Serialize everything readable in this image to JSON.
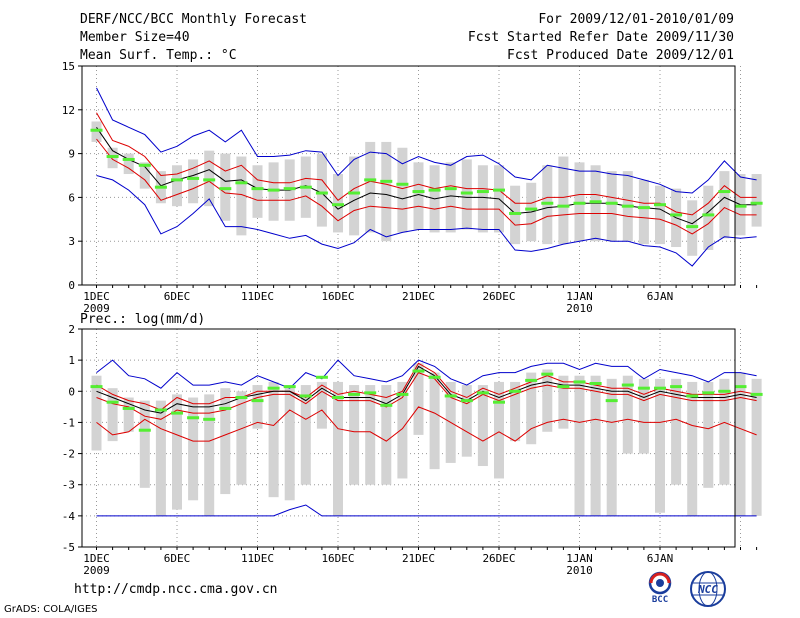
{
  "header": {
    "title": "DERF/NCC/BCC Monthly Forecast",
    "member_size": "Member Size=40",
    "variable": "Mean Surf. Temp.: °C",
    "period": "For 2009/12/01-2010/01/09",
    "fcst_started": "Fcst Started Refer Date 2009/11/30",
    "fcst_produced": "Fcst Produced Date 2009/12/01"
  },
  "footer": {
    "url": "http://cmdp.ncc.cma.gov.cn",
    "credit": "GrADS: COLA/IGES",
    "logo_bcc": "BCC",
    "logo_ncc": "NCC"
  },
  "colors": {
    "ensemble_mean": "#000000",
    "spread": "#dd0000",
    "extreme": "#0000cc",
    "bar": "#d3d3d3",
    "marker": "#55ee33"
  },
  "chart_data": [
    {
      "type": "line",
      "title": "Mean Surf. Temp.: °C",
      "ylim": [
        0,
        15
      ],
      "yticks": [
        "0",
        "3",
        "6",
        "9",
        "12",
        "15"
      ],
      "xtick_labels": [
        "1DEC",
        "6DEC",
        "11DEC",
        "16DEC",
        "21DEC",
        "26DEC",
        "1JAN",
        "6JAN"
      ],
      "xtick_years": [
        "2009",
        "",
        "",
        "",
        "",
        "",
        "2010",
        ""
      ],
      "series": [
        {
          "name": "max",
          "values": [
            13.5,
            11.3,
            10.8,
            10.3,
            9.1,
            9.5,
            10.2,
            10.6,
            9.8,
            10.6,
            8.8,
            8.8,
            8.9,
            9.2,
            9.1,
            7.5,
            8.6,
            9.1,
            9.0,
            8.3,
            8.8,
            8.4,
            8.2,
            8.8,
            8.9,
            8.3,
            7.4,
            7.2,
            8.2,
            8.0,
            7.8,
            7.8,
            7.6,
            7.5,
            7.2,
            6.9,
            6.4,
            6.3,
            7.2,
            8.5,
            7.4,
            7.2
          ]
        },
        {
          "name": "upper",
          "values": [
            11.8,
            9.9,
            9.5,
            8.8,
            7.5,
            7.6,
            8.0,
            8.5,
            7.8,
            8.2,
            7.2,
            7.0,
            7.0,
            7.3,
            7.2,
            5.8,
            6.6,
            7.1,
            6.9,
            6.6,
            6.9,
            6.6,
            6.8,
            6.6,
            6.6,
            6.5,
            5.6,
            5.6,
            6.0,
            6.0,
            6.2,
            6.2,
            6.0,
            5.8,
            5.6,
            5.6,
            5.0,
            4.8,
            5.6,
            6.8,
            6.0,
            6.0
          ]
        },
        {
          "name": "mean",
          "values": [
            10.8,
            9.2,
            8.6,
            8.1,
            6.8,
            7.2,
            7.5,
            7.9,
            7.1,
            7.2,
            6.6,
            6.5,
            6.5,
            6.8,
            6.3,
            5.2,
            5.8,
            6.3,
            6.2,
            5.9,
            6.2,
            5.9,
            6.1,
            6.0,
            6.0,
            5.9,
            4.9,
            5.0,
            5.3,
            5.4,
            5.6,
            5.6,
            5.6,
            5.4,
            5.3,
            5.2,
            4.6,
            4.2,
            5.0,
            6.0,
            5.5,
            5.5
          ]
        },
        {
          "name": "lower",
          "values": [
            10.0,
            8.6,
            8.0,
            7.2,
            5.8,
            6.2,
            6.6,
            7.1,
            6.3,
            6.2,
            5.8,
            5.8,
            5.8,
            6.1,
            5.4,
            4.4,
            5.1,
            5.4,
            5.3,
            5.2,
            5.4,
            5.2,
            5.4,
            5.2,
            5.2,
            5.2,
            4.1,
            4.2,
            4.7,
            4.8,
            4.9,
            4.9,
            4.9,
            4.7,
            4.6,
            4.5,
            4.1,
            3.5,
            4.2,
            5.3,
            4.8,
            4.8
          ]
        },
        {
          "name": "min",
          "values": [
            7.5,
            7.2,
            6.5,
            5.5,
            3.5,
            4.0,
            4.9,
            5.9,
            4.0,
            4.0,
            3.8,
            3.5,
            3.2,
            3.4,
            2.8,
            2.5,
            2.9,
            3.8,
            3.3,
            3.6,
            3.8,
            3.8,
            3.8,
            3.9,
            3.8,
            3.8,
            2.4,
            2.3,
            2.5,
            2.8,
            3.0,
            3.2,
            3.0,
            3.0,
            2.7,
            2.6,
            2.2,
            1.3,
            2.6,
            3.3,
            3.2,
            3.3
          ]
        },
        {
          "name": "marker",
          "values": [
            10.6,
            8.8,
            8.6,
            8.2,
            6.7,
            7.2,
            7.3,
            7.2,
            6.6,
            7.0,
            6.6,
            6.5,
            6.6,
            6.7,
            6.3,
            5.5,
            6.3,
            7.2,
            7.1,
            6.9,
            6.4,
            6.5,
            6.6,
            6.3,
            6.4,
            6.5,
            4.9,
            5.2,
            5.6,
            5.4,
            5.6,
            5.7,
            5.6,
            5.4,
            5.3,
            5.5,
            4.8,
            4.0,
            4.8,
            6.4,
            5.4,
            5.6
          ]
        },
        {
          "name": "bar_top",
          "values": [
            11.2,
            9.4,
            9.0,
            8.4,
            7.8,
            8.2,
            8.6,
            9.2,
            9.0,
            8.8,
            8.2,
            8.4,
            8.6,
            8.8,
            9.0,
            7.6,
            8.8,
            9.8,
            9.8,
            9.4,
            8.4,
            8.2,
            8.4,
            8.6,
            8.2,
            8.2,
            6.8,
            7.0,
            8.2,
            8.8,
            8.4,
            8.2,
            7.8,
            7.8,
            7.2,
            6.8,
            6.6,
            5.8,
            6.8,
            7.8,
            7.6,
            7.6
          ]
        },
        {
          "name": "bar_bottom",
          "values": [
            9.8,
            8.0,
            7.6,
            6.6,
            5.6,
            5.4,
            5.6,
            5.4,
            4.4,
            3.4,
            4.6,
            4.4,
            4.4,
            4.6,
            4.0,
            3.6,
            3.4,
            3.6,
            3.0,
            3.6,
            3.8,
            3.6,
            3.6,
            3.8,
            3.6,
            3.6,
            2.8,
            3.0,
            2.8,
            2.8,
            3.0,
            3.0,
            3.0,
            3.0,
            2.8,
            2.8,
            2.6,
            2.0,
            2.4,
            3.2,
            3.4,
            4.0
          ]
        }
      ]
    },
    {
      "type": "line",
      "title": "Prec.: log(mm/d)",
      "ylim": [
        -5,
        2
      ],
      "yticks": [
        "-5",
        "-4",
        "-3",
        "-2",
        "-1",
        "0",
        "1",
        "2"
      ],
      "xtick_labels": [
        "1DEC",
        "6DEC",
        "11DEC",
        "16DEC",
        "21DEC",
        "26DEC",
        "1JAN",
        "6JAN"
      ],
      "xtick_years": [
        "2009",
        "",
        "",
        "",
        "",
        "",
        "2010",
        ""
      ],
      "series": [
        {
          "name": "max",
          "values": [
            0.6,
            1.0,
            0.5,
            0.4,
            0.1,
            0.6,
            0.2,
            0.2,
            0.3,
            0.2,
            0.5,
            0.3,
            0.1,
            0.6,
            0.4,
            1.0,
            0.5,
            0.4,
            0.3,
            0.5,
            1.0,
            0.8,
            0.4,
            0.2,
            0.5,
            0.6,
            0.6,
            0.8,
            0.9,
            0.9,
            0.7,
            0.9,
            0.8,
            0.8,
            0.4,
            0.7,
            0.6,
            0.5,
            0.3,
            0.6,
            0.6,
            0.5
          ]
        },
        {
          "name": "upper",
          "values": [
            0.2,
            -0.1,
            -0.3,
            -0.4,
            -0.6,
            -0.2,
            -0.4,
            -0.4,
            -0.2,
            -0.2,
            0.0,
            0.0,
            0.0,
            -0.2,
            0.2,
            -0.1,
            0.0,
            -0.1,
            -0.2,
            0.0,
            0.9,
            0.6,
            0.0,
            -0.2,
            0.1,
            -0.1,
            0.1,
            0.3,
            0.5,
            0.3,
            0.3,
            0.2,
            0.1,
            0.1,
            -0.1,
            0.1,
            0.0,
            -0.1,
            -0.1,
            -0.1,
            0.0,
            -0.1
          ]
        },
        {
          "name": "mean",
          "values": [
            0.0,
            -0.2,
            -0.4,
            -0.6,
            -0.7,
            -0.4,
            -0.5,
            -0.5,
            -0.4,
            -0.2,
            -0.1,
            0.0,
            0.0,
            -0.3,
            0.1,
            -0.2,
            -0.2,
            -0.2,
            -0.4,
            -0.1,
            0.8,
            0.5,
            -0.1,
            -0.3,
            0.0,
            -0.2,
            -0.0,
            0.2,
            0.3,
            0.2,
            0.2,
            0.1,
            0.0,
            0.0,
            -0.2,
            0.0,
            -0.1,
            -0.2,
            -0.2,
            -0.2,
            -0.1,
            -0.2
          ]
        },
        {
          "name": "lower",
          "values": [
            -0.2,
            -0.4,
            -0.5,
            -0.8,
            -0.9,
            -0.6,
            -0.7,
            -0.7,
            -0.6,
            -0.4,
            -0.2,
            -0.1,
            -0.1,
            -0.4,
            0.0,
            -0.3,
            -0.3,
            -0.3,
            -0.5,
            -0.2,
            0.6,
            0.4,
            -0.2,
            -0.4,
            -0.1,
            -0.3,
            -0.1,
            0.1,
            0.2,
            0.1,
            0.1,
            0.0,
            -0.1,
            -0.1,
            -0.3,
            -0.1,
            -0.2,
            -0.3,
            -0.3,
            -0.3,
            -0.2,
            -0.3
          ]
        },
        {
          "name": "red_low",
          "values": [
            -1.0,
            -1.4,
            -1.3,
            -0.9,
            -1.2,
            -1.4,
            -1.6,
            -1.6,
            -1.4,
            -1.2,
            -1.0,
            -1.1,
            -0.6,
            -0.9,
            -0.6,
            -1.2,
            -1.3,
            -1.3,
            -1.6,
            -1.2,
            -0.5,
            -0.7,
            -1.0,
            -1.3,
            -1.6,
            -1.3,
            -1.6,
            -1.2,
            -1.0,
            -0.9,
            -1.0,
            -0.9,
            -1.0,
            -0.9,
            -1.0,
            -1.0,
            -0.9,
            -1.1,
            -1.2,
            -1.0,
            -1.2,
            -1.4
          ]
        },
        {
          "name": "min",
          "values": [
            -4,
            -4,
            -4,
            -4,
            -4,
            -4,
            -4,
            -4,
            -4,
            -4,
            -4,
            -4,
            -3.8,
            -3.65,
            -4,
            -4,
            -4,
            -4,
            -4,
            -4,
            -4,
            -4,
            -4,
            -4,
            -4,
            -4,
            -4,
            -4,
            -4,
            -4,
            -4,
            -4,
            -4,
            -4,
            -4,
            -4,
            -4,
            -4,
            -4,
            -4,
            -4,
            -4
          ]
        },
        {
          "name": "marker",
          "values": [
            0.15,
            -0.35,
            -0.55,
            -1.25,
            -0.6,
            -0.7,
            -0.85,
            -0.9,
            -0.55,
            -0.2,
            -0.3,
            0.1,
            0.15,
            -0.15,
            0.45,
            -0.2,
            -0.1,
            -0.05,
            -0.45,
            -0.1,
            0.65,
            0.45,
            -0.15,
            -0.3,
            -0.05,
            -0.35,
            0.0,
            0.35,
            0.55,
            0.15,
            0.3,
            0.25,
            -0.3,
            0.2,
            0.1,
            0.1,
            0.15,
            -0.15,
            -0.05,
            0.0,
            0.15,
            -0.1
          ]
        },
        {
          "name": "bar_top",
          "values": [
            0.5,
            0.1,
            -0.2,
            -0.3,
            -0.3,
            -0.1,
            -0.2,
            -0.1,
            0.1,
            0.0,
            0.2,
            0.3,
            0.2,
            0.2,
            0.3,
            0.3,
            0.2,
            0.2,
            0.2,
            0.3,
            0.9,
            0.6,
            0.3,
            0.2,
            0.2,
            0.3,
            0.3,
            0.6,
            0.7,
            0.5,
            0.5,
            0.5,
            0.4,
            0.5,
            0.4,
            0.4,
            0.4,
            0.3,
            0.3,
            0.4,
            0.6,
            0.4
          ]
        },
        {
          "name": "bar_bottom",
          "values": [
            -1.9,
            -1.6,
            -1.3,
            -3.1,
            -4.0,
            -3.8,
            -3.5,
            -4.0,
            -3.3,
            -3.0,
            -1.2,
            -3.4,
            -3.5,
            -3.0,
            -1.2,
            -4.0,
            -3.0,
            -3.0,
            -3.0,
            -2.8,
            -1.4,
            -2.5,
            -2.3,
            -2.1,
            -2.4,
            -2.8,
            -1.6,
            -1.7,
            -1.3,
            -1.2,
            -4.0,
            -4.0,
            -4.0,
            -2.0,
            -2.0,
            -3.9,
            -3.0,
            -4.0,
            -3.1,
            -3.0,
            -4.0,
            -4.0
          ]
        }
      ]
    }
  ]
}
